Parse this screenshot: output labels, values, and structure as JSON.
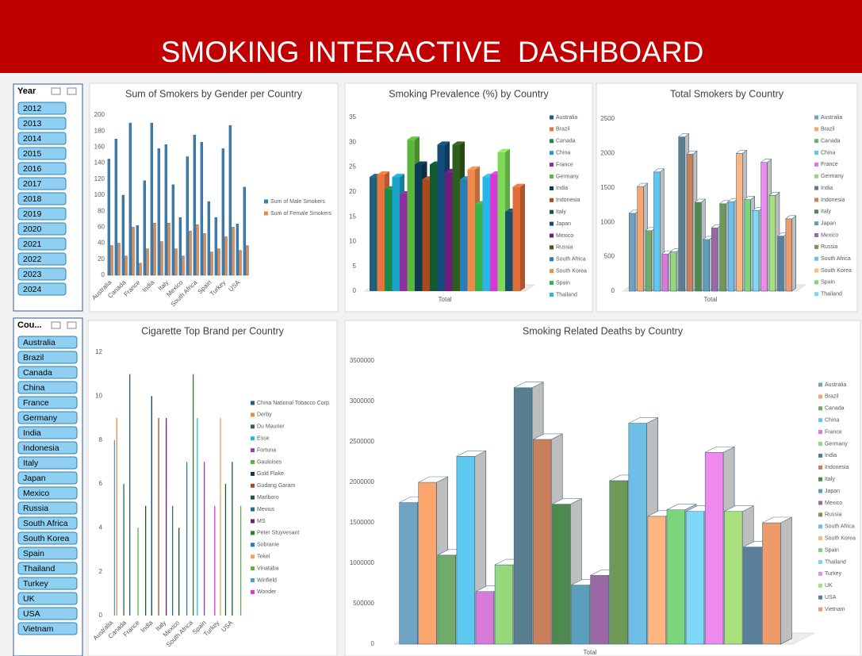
{
  "header": {
    "title": "SMOKING INTERACTIVE  DASHBOARD"
  },
  "slicers": [
    {
      "title": "Year",
      "items": [
        "2012",
        "2013",
        "2014",
        "2015",
        "2016",
        "2017",
        "2018",
        "2019",
        "2020",
        "2021",
        "2022",
        "2023",
        "2024"
      ]
    },
    {
      "title": "Cou...",
      "items": [
        "Australia",
        "Brazil",
        "Canada",
        "China",
        "France",
        "Germany",
        "India",
        "Indonesia",
        "Italy",
        "Japan",
        "Mexico",
        "Russia",
        "South Africa",
        "South Korea",
        "Spain",
        "Thailand",
        "Turkey",
        "UK",
        "USA",
        "Vietnam"
      ]
    }
  ],
  "chart_data": [
    {
      "type": "bar",
      "title": "Sum of Smokers by Gender per Country",
      "categories": [
        "Australia",
        null,
        "Canada",
        null,
        "France",
        null,
        "India",
        null,
        "Italy",
        null,
        "Mexico",
        null,
        "South Africa",
        null,
        "Spain",
        null,
        "Turkey",
        null,
        "USA",
        null
      ],
      "series": [
        {
          "name": "Sum of Male Smokers",
          "color": "#3f7fb0",
          "values": [
            145,
            170,
            100,
            190,
            62,
            118,
            190,
            158,
            163,
            113,
            72,
            148,
            175,
            166,
            92,
            72,
            158,
            187,
            64,
            110
          ]
        },
        {
          "name": "Sum of Female Smokers",
          "color": "#f08a3c",
          "values": [
            37,
            40,
            24,
            60,
            15,
            33,
            65,
            42,
            65,
            33,
            24,
            55,
            63,
            52,
            29,
            33,
            48,
            60,
            31,
            37
          ]
        }
      ],
      "ylim": [
        0,
        200
      ],
      "yticks": [
        0,
        20,
        40,
        60,
        80,
        100,
        120,
        140,
        160,
        180,
        200
      ],
      "grid": false
    },
    {
      "type": "bar3d",
      "title": "Smoking Prevalence (%) by Country",
      "categories": [
        "Total"
      ],
      "series": [
        {
          "name": "Australia",
          "color": "#1f5f7a",
          "values": [
            23
          ]
        },
        {
          "name": "Brazil",
          "color": "#e8743b",
          "values": [
            23.5
          ]
        },
        {
          "name": "Canada",
          "color": "#1a8a4a",
          "values": [
            20.5
          ]
        },
        {
          "name": "China",
          "color": "#1aa3c9",
          "values": [
            23
          ]
        },
        {
          "name": "France",
          "color": "#8e2ca0",
          "values": [
            19.5
          ]
        },
        {
          "name": "Germany",
          "color": "#5bb73b",
          "values": [
            30.5
          ]
        },
        {
          "name": "India",
          "color": "#0d3b55",
          "values": [
            25.5
          ]
        },
        {
          "name": "Indonesia",
          "color": "#a84a1c",
          "values": [
            22.5
          ]
        },
        {
          "name": "Italy",
          "color": "#0f5a2e",
          "values": [
            25.5
          ]
        },
        {
          "name": "Japan",
          "color": "#124a7a",
          "values": [
            29.5
          ]
        },
        {
          "name": "Mexico",
          "color": "#6a1f7a",
          "values": [
            24
          ]
        },
        {
          "name": "Russia",
          "color": "#2e5e1e",
          "values": [
            29.5
          ]
        },
        {
          "name": "South Africa",
          "color": "#2a7db5",
          "values": [
            22.5
          ]
        },
        {
          "name": "South Korea",
          "color": "#f08a4b",
          "values": [
            24.5
          ]
        },
        {
          "name": "Spain",
          "color": "#37b24d",
          "values": [
            17.5
          ]
        },
        {
          "name": "Thailand",
          "color": "#29b6e6",
          "values": [
            23
          ]
        },
        {
          "color": "#d63ad6",
          "values": [
            23.5
          ]
        },
        {
          "color": "#7ed957",
          "values": [
            28
          ]
        },
        {
          "color": "#1a4f6b",
          "values": [
            16
          ]
        },
        {
          "color": "#e06d3a",
          "values": [
            21
          ]
        }
      ],
      "ylim": [
        0,
        35
      ],
      "yticks": [
        0,
        5,
        10,
        15,
        20,
        25,
        30,
        35
      ],
      "grid": false
    },
    {
      "type": "bar3d",
      "title": "Total Smokers by Country",
      "categories": [
        "Total"
      ],
      "series": [
        {
          "name": "Australia",
          "color": "#6fa3c4",
          "values": [
            1130
          ]
        },
        {
          "name": "Brazil",
          "color": "#f9a66c",
          "values": [
            1520
          ]
        },
        {
          "name": "Canada",
          "color": "#6fac6a",
          "values": [
            880
          ]
        },
        {
          "name": "China",
          "color": "#5ec8f0",
          "values": [
            1730
          ]
        },
        {
          "name": "France",
          "color": "#d87ad8",
          "values": [
            540
          ]
        },
        {
          "name": "Germany",
          "color": "#96d87a",
          "values": [
            570
          ]
        },
        {
          "name": "India",
          "color": "#587e8f",
          "values": [
            2240
          ]
        },
        {
          "name": "Indonesia",
          "color": "#c9805a",
          "values": [
            1990
          ]
        },
        {
          "name": "Italy",
          "color": "#4e8a4e",
          "values": [
            1290
          ]
        },
        {
          "name": "Japan",
          "color": "#5b9fbd",
          "values": [
            750
          ]
        },
        {
          "name": "Mexico",
          "color": "#9b67a5",
          "values": [
            920
          ]
        },
        {
          "name": "Russia",
          "color": "#6e9a55",
          "values": [
            1270
          ]
        },
        {
          "name": "South Africa",
          "color": "#6ebfe8",
          "values": [
            1300
          ]
        },
        {
          "name": "South Korea",
          "color": "#ffb681",
          "values": [
            2000
          ]
        },
        {
          "name": "Spain",
          "color": "#7bd67b",
          "values": [
            1330
          ]
        },
        {
          "name": "Thailand",
          "color": "#7ed8f5",
          "values": [
            1170
          ]
        },
        {
          "color": "#ee8aee",
          "values": [
            1870
          ]
        },
        {
          "color": "#a9e07e",
          "values": [
            1390
          ]
        },
        {
          "color": "#5a7f99",
          "values": [
            800
          ]
        },
        {
          "color": "#ef9a6a",
          "values": [
            1050
          ]
        }
      ],
      "ylim": [
        0,
        2500
      ],
      "yticks": [
        0,
        500,
        1000,
        1500,
        2000,
        2500
      ],
      "grid": false
    },
    {
      "type": "bar",
      "title": "Cigarette Top Brand per Country",
      "categories": [
        "Australia",
        null,
        "Canada",
        null,
        "France",
        null,
        "India",
        null,
        "Italy",
        null,
        "Mexico",
        null,
        "South Africa",
        null,
        "Spain",
        null,
        "Turkey",
        null,
        "USA",
        null
      ],
      "series": [
        {
          "name": "China National Tobacco Corp.",
          "color": "#1f5f7a",
          "values": [
            null,
            null,
            null,
            11,
            null,
            null,
            null,
            null,
            null,
            null,
            null,
            null,
            null,
            null,
            null,
            null,
            null,
            null,
            null,
            null
          ]
        },
        {
          "name": "Derby",
          "color": "#f08a3c",
          "values": [
            null,
            9,
            null,
            null,
            null,
            null,
            null,
            null,
            null,
            null,
            null,
            null,
            null,
            null,
            null,
            null,
            null,
            null,
            null,
            null
          ]
        },
        {
          "name": "Du Maurier",
          "color": "#2e6e3e",
          "values": [
            null,
            null,
            6,
            null,
            null,
            null,
            null,
            null,
            null,
            null,
            null,
            null,
            null,
            null,
            null,
            null,
            null,
            null,
            null,
            null
          ]
        },
        {
          "name": "Esse",
          "color": "#29b6e6",
          "values": [
            null,
            null,
            null,
            null,
            null,
            null,
            null,
            null,
            null,
            null,
            null,
            null,
            null,
            9,
            null,
            null,
            null,
            null,
            null,
            null
          ]
        },
        {
          "name": "Fortuna",
          "color": "#a03ab0",
          "values": [
            null,
            null,
            null,
            null,
            null,
            null,
            null,
            null,
            null,
            null,
            null,
            null,
            null,
            null,
            7,
            null,
            null,
            null,
            null,
            null
          ]
        },
        {
          "name": "Gauloises",
          "color": "#5bb73b",
          "values": [
            null,
            null,
            null,
            null,
            4,
            null,
            null,
            null,
            null,
            null,
            null,
            null,
            null,
            null,
            null,
            null,
            null,
            null,
            null,
            null
          ]
        },
        {
          "name": "Gold Flake",
          "color": "#0d3b55",
          "values": [
            null,
            null,
            null,
            null,
            null,
            null,
            10,
            null,
            null,
            null,
            null,
            null,
            null,
            null,
            null,
            null,
            null,
            null,
            null,
            null
          ]
        },
        {
          "name": "Gudang Garam",
          "color": "#a84a1c",
          "values": [
            null,
            null,
            null,
            null,
            null,
            null,
            null,
            9,
            null,
            null,
            null,
            null,
            null,
            null,
            null,
            null,
            null,
            null,
            null,
            null
          ]
        },
        {
          "name": "Marlboro",
          "color": "#1f5a2e",
          "values": [
            null,
            null,
            null,
            null,
            null,
            5,
            null,
            null,
            null,
            null,
            4,
            null,
            null,
            null,
            null,
            null,
            null,
            6,
            7,
            null
          ]
        },
        {
          "name": "Mevius",
          "color": "#1f6f8a",
          "values": [
            null,
            null,
            null,
            null,
            null,
            null,
            null,
            null,
            null,
            5,
            null,
            null,
            null,
            null,
            null,
            null,
            null,
            null,
            null,
            null
          ]
        },
        {
          "name": "MS",
          "color": "#6a1f7a",
          "values": [
            null,
            null,
            null,
            null,
            null,
            null,
            null,
            null,
            9,
            null,
            null,
            null,
            null,
            null,
            null,
            null,
            null,
            null,
            null,
            null
          ]
        },
        {
          "name": "Peter Stuyvesant",
          "color": "#2e7e2e",
          "values": [
            null,
            null,
            null,
            null,
            null,
            null,
            null,
            null,
            null,
            null,
            null,
            null,
            11,
            null,
            null,
            null,
            null,
            null,
            null,
            null
          ]
        },
        {
          "name": "Sobranie",
          "color": "#2a7db5",
          "values": [
            null,
            null,
            null,
            null,
            null,
            null,
            null,
            null,
            null,
            null,
            null,
            7,
            null,
            null,
            null,
            null,
            null,
            null,
            null,
            null
          ]
        },
        {
          "name": "Tekel",
          "color": "#f0a060",
          "values": [
            null,
            null,
            null,
            null,
            null,
            null,
            null,
            null,
            null,
            null,
            null,
            null,
            null,
            null,
            null,
            null,
            9,
            null,
            null,
            null
          ]
        },
        {
          "name": "Vinataba",
          "color": "#5bb73b",
          "values": [
            null,
            null,
            null,
            null,
            null,
            null,
            null,
            null,
            null,
            null,
            null,
            null,
            null,
            null,
            null,
            null,
            null,
            null,
            null,
            5
          ]
        },
        {
          "name": "Winfield",
          "color": "#4a9fd0",
          "values": [
            8,
            null,
            null,
            null,
            null,
            null,
            null,
            null,
            null,
            null,
            null,
            null,
            null,
            null,
            null,
            null,
            null,
            null,
            null,
            null
          ]
        },
        {
          "name": "Wonder",
          "color": "#d63ad6",
          "values": [
            null,
            null,
            null,
            null,
            null,
            null,
            null,
            null,
            null,
            null,
            null,
            null,
            null,
            null,
            null,
            5,
            null,
            null,
            null,
            null
          ]
        }
      ],
      "ylim": [
        0,
        12
      ],
      "yticks": [
        0,
        2,
        4,
        6,
        8,
        10,
        12
      ],
      "grid": false
    },
    {
      "type": "bar3d",
      "title": "Smoking Related Deaths by Country",
      "categories": [
        "Total"
      ],
      "series": [
        {
          "name": "Australia",
          "color": "#6fa3c4",
          "values": [
            1750000
          ]
        },
        {
          "name": "Brazil",
          "color": "#f9a66c",
          "values": [
            2000000
          ]
        },
        {
          "name": "Canada",
          "color": "#6fac6a",
          "values": [
            1100000
          ]
        },
        {
          "name": "China",
          "color": "#5ec8f0",
          "values": [
            2320000
          ]
        },
        {
          "name": "France",
          "color": "#d87ad8",
          "values": [
            650000
          ]
        },
        {
          "name": "Germany",
          "color": "#96d87a",
          "values": [
            980000
          ]
        },
        {
          "name": "India",
          "color": "#587e8f",
          "values": [
            3170000
          ]
        },
        {
          "name": "Indonesia",
          "color": "#c9805a",
          "values": [
            2530000
          ]
        },
        {
          "name": "Italy",
          "color": "#4e8a4e",
          "values": [
            1730000
          ]
        },
        {
          "name": "Japan",
          "color": "#5b9fbd",
          "values": [
            730000
          ]
        },
        {
          "name": "Mexico",
          "color": "#9b67a5",
          "values": [
            850000
          ]
        },
        {
          "name": "Russia",
          "color": "#6e9a55",
          "values": [
            2020000
          ]
        },
        {
          "name": "South Africa",
          "color": "#6ebfe8",
          "values": [
            2730000
          ]
        },
        {
          "name": "South Korea",
          "color": "#ffb681",
          "values": [
            1580000
          ]
        },
        {
          "name": "Spain",
          "color": "#7bd67b",
          "values": [
            1660000
          ]
        },
        {
          "name": "Thailand",
          "color": "#7ed8f5",
          "values": [
            1640000
          ]
        },
        {
          "name": "Turkey",
          "color": "#ee8aee",
          "values": [
            2370000
          ]
        },
        {
          "name": "UK",
          "color": "#a9e07e",
          "values": [
            1640000
          ]
        },
        {
          "name": "USA",
          "color": "#5a7f99",
          "values": [
            1200000
          ]
        },
        {
          "name": "Vietnam",
          "color": "#ef9a6a",
          "values": [
            1500000
          ]
        }
      ],
      "ylim": [
        0,
        3500000
      ],
      "yticks": [
        0,
        500000,
        1000000,
        1500000,
        2000000,
        2500000,
        3000000,
        3500000
      ],
      "grid": false
    }
  ]
}
